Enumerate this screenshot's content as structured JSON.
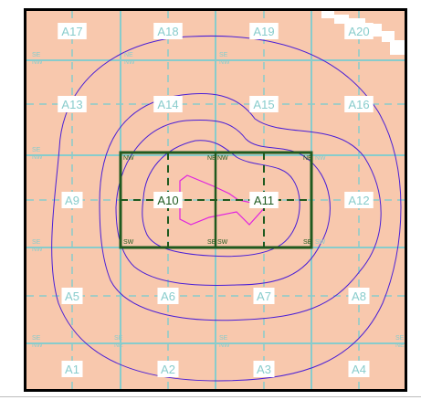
{
  "map": {
    "colors": {
      "background": "#f8c8ad",
      "grid_line": "#88cccc",
      "label_bg": "#ffffff",
      "label_text": "#88cccc",
      "contour": "#4a1fd6",
      "inner_shape": "#e020e0",
      "study_box": "#1f5a1f"
    },
    "tiles": [
      {
        "id": "A17"
      },
      {
        "id": "A18"
      },
      {
        "id": "A19"
      },
      {
        "id": "A20"
      },
      {
        "id": "A13"
      },
      {
        "id": "A14"
      },
      {
        "id": "A15"
      },
      {
        "id": "A16"
      },
      {
        "id": "A9"
      },
      {
        "id": "A10"
      },
      {
        "id": "A11"
      },
      {
        "id": "A12"
      },
      {
        "id": "A5"
      },
      {
        "id": "A6"
      },
      {
        "id": "A7"
      },
      {
        "id": "A8"
      },
      {
        "id": "A1"
      },
      {
        "id": "A2"
      },
      {
        "id": "A3"
      },
      {
        "id": "A4"
      }
    ],
    "corner_labels": {
      "ne": "NE",
      "nw": "NW",
      "se": "SE",
      "sw": "SW"
    }
  }
}
